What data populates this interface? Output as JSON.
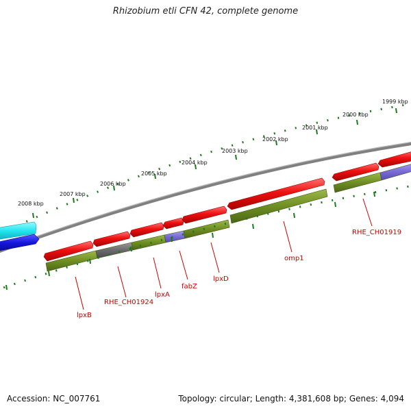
{
  "title": "Rhizobium etli CFN 42, complete genome",
  "footer": {
    "accession": "Accession: NC_007761",
    "summary": "Topology: circular; Length: 4,381,608 bp; Genes: 4,094"
  },
  "colors": {
    "backbone": "#808080",
    "gene_forward": "#ee1111",
    "gene_reverse": "#1515dd",
    "cds": "#6f8e22",
    "cds_alt_gray": "#6a6a6a",
    "cds_alt_blue": "#7a6ad6",
    "partial_cyan": "#22e6ee",
    "tick": "#1a7a1a",
    "label": "#cc0000"
  },
  "ruler_labels": [
    "2008 kbp",
    "2007 kbp",
    "2006 kbp",
    "2005 kbp",
    "2004 kbp",
    "2003 kbp",
    "2002 kbp",
    "2001 kbp",
    "2000 kbp",
    "1999 kbp"
  ],
  "gene_labels": [
    "lpxB",
    "RHE_CH01924",
    "lpxA",
    "fabZ",
    "lpxD",
    "omp1",
    "RHE_CH01919"
  ]
}
